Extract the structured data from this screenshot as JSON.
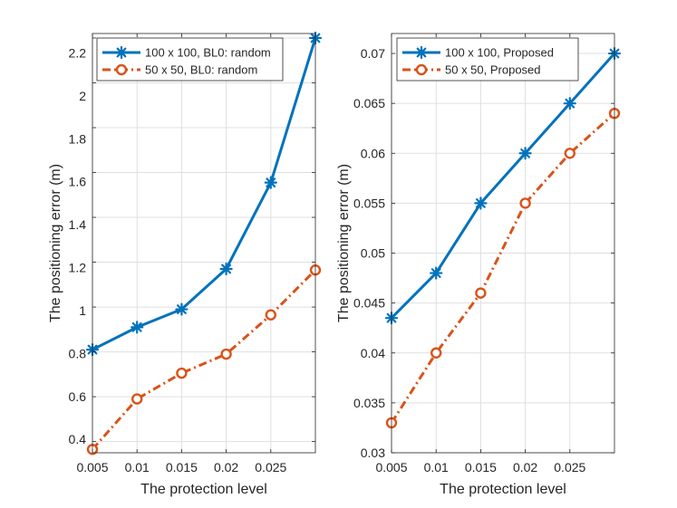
{
  "chart_data": [
    {
      "type": "line",
      "xlabel": "The protection level",
      "ylabel": "The positioning error (m)",
      "x": [
        0.005,
        0.01,
        0.015,
        0.02,
        0.025,
        0.03
      ],
      "x_tick_values": [
        0.005,
        0.01,
        0.015,
        0.02,
        0.025
      ],
      "x_tick_labels": [
        "0.005",
        "0.01",
        "0.015",
        "0.02",
        "0.025"
      ],
      "xlim": [
        0.005,
        0.03
      ],
      "ylim": [
        0.35,
        2.22
      ],
      "y_tick_values": [
        0.4,
        0.6,
        0.8,
        1.0,
        1.2,
        1.4,
        1.6,
        1.8,
        2.0,
        2.2
      ],
      "y_tick_labels": [
        "0.4",
        "0.6",
        "0.8",
        "1",
        "1.2",
        "1.4",
        "1.6",
        "1.8",
        "2",
        "2.2"
      ],
      "grid": true,
      "legend_position": "top-left",
      "series": [
        {
          "name": "100 x 100, BL0: random",
          "values": [
            0.81,
            0.91,
            0.99,
            1.17,
            1.555,
            2.2
          ],
          "color": "#0072BD",
          "marker": "asterisk",
          "line_style": "solid"
        },
        {
          "name": "50 x 50, BL0: random",
          "values": [
            0.365,
            0.59,
            0.705,
            0.79,
            0.965,
            1.165
          ],
          "color": "#D95319",
          "marker": "circle",
          "line_style": "dash-dot"
        }
      ]
    },
    {
      "type": "line",
      "xlabel": "The protection level",
      "ylabel": "The positioning error (m)",
      "x": [
        0.005,
        0.01,
        0.015,
        0.02,
        0.025,
        0.03
      ],
      "x_tick_values": [
        0.005,
        0.01,
        0.015,
        0.02,
        0.025
      ],
      "x_tick_labels": [
        "0.005",
        "0.01",
        "0.015",
        "0.02",
        "0.025"
      ],
      "xlim": [
        0.005,
        0.03
      ],
      "ylim": [
        0.03,
        0.072
      ],
      "y_tick_values": [
        0.03,
        0.035,
        0.04,
        0.045,
        0.05,
        0.055,
        0.06,
        0.065,
        0.07
      ],
      "y_tick_labels": [
        "0.03",
        "0.035",
        "0.04",
        "0.045",
        "0.05",
        "0.055",
        "0.06",
        "0.065",
        "0.07"
      ],
      "grid": true,
      "legend_position": "top-left",
      "series": [
        {
          "name": "100 x 100, Proposed",
          "values": [
            0.0435,
            0.048,
            0.055,
            0.06,
            0.065,
            0.07
          ],
          "color": "#0072BD",
          "marker": "asterisk",
          "line_style": "solid"
        },
        {
          "name": "50 x 50, Proposed",
          "values": [
            0.033,
            0.04,
            0.046,
            0.055,
            0.06,
            0.064
          ],
          "color": "#D95319",
          "marker": "circle",
          "line_style": "dash-dot"
        }
      ]
    }
  ]
}
